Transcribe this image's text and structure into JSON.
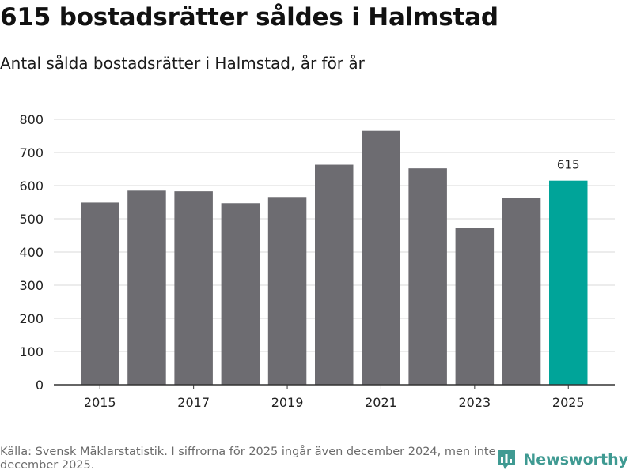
{
  "header": {
    "title": "615 bostadsrätter såldes i Halmstad",
    "subtitle": "Antal sålda bostadsrätter i Halmstad, år för år"
  },
  "footer": {
    "source": "Källa: Svensk Mäklarstatistik. I siffrorna för 2025 ingår även december 2024, men inte december 2025.",
    "brand": "Newsworthy",
    "brand_icon": "newsworthy-logo-icon"
  },
  "colors": {
    "bar": "#6d6c71",
    "highlight": "#00a499",
    "grid": "#d9d9d9",
    "axis": "#333333",
    "brand": "#3f9a92"
  },
  "chart_data": {
    "type": "bar",
    "title": "615 bostadsrätter såldes i Halmstad",
    "subtitle": "Antal sålda bostadsrätter i Halmstad, år för år",
    "xlabel": "",
    "ylabel": "",
    "categories": [
      "2015",
      "2016",
      "2017",
      "2018",
      "2019",
      "2020",
      "2021",
      "2022",
      "2023",
      "2024",
      "2025"
    ],
    "values": [
      549,
      585,
      583,
      547,
      566,
      663,
      765,
      652,
      473,
      563,
      615
    ],
    "x_tick_labels": [
      "2015",
      "2017",
      "2019",
      "2021",
      "2023",
      "2025"
    ],
    "y_ticks": [
      0,
      100,
      200,
      300,
      400,
      500,
      600,
      700,
      800
    ],
    "ylim": [
      0,
      800
    ],
    "grid": true,
    "highlight_category": "2025",
    "data_labels": [
      {
        "category": "2025",
        "text": "615"
      }
    ]
  }
}
